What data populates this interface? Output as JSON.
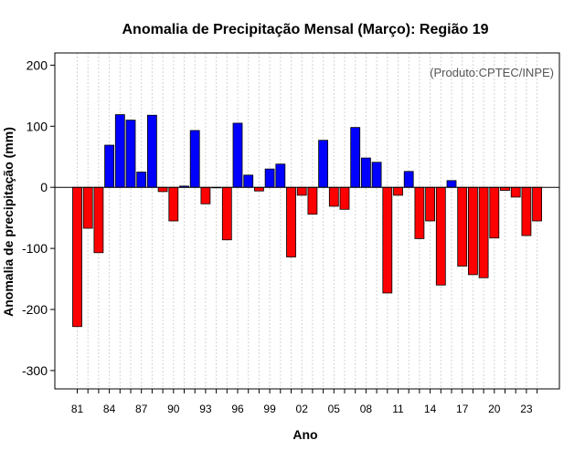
{
  "chart_data": {
    "type": "bar",
    "title": "Anomalia de Precipitação Mensal (Março): Região 19",
    "xlabel": "Ano",
    "ylabel": "Anomalia de precipitação (mm)",
    "credit": "(Produto:CPTEC/INPE)",
    "ylim": [
      -330,
      220
    ],
    "yticks": [
      -300,
      -200,
      -100,
      0,
      100,
      200
    ],
    "xtick_labels": [
      "81",
      "84",
      "87",
      "90",
      "93",
      "96",
      "99",
      "02",
      "05",
      "08",
      "11",
      "14",
      "17",
      "20",
      "23"
    ],
    "xtick_every": 3,
    "grid": true,
    "zero_line": true,
    "colors": {
      "positive": "#0000ff",
      "negative": "#ff0000",
      "grid": "#d3d3d3",
      "axis": "#000000"
    },
    "categories": [
      "1981",
      "1982",
      "1983",
      "1984",
      "1985",
      "1986",
      "1987",
      "1988",
      "1989",
      "1990",
      "1991",
      "1992",
      "1993",
      "1994",
      "1995",
      "1996",
      "1997",
      "1998",
      "1999",
      "2000",
      "2001",
      "2002",
      "2003",
      "2004",
      "2005",
      "2006",
      "2007",
      "2008",
      "2009",
      "2010",
      "2011",
      "2012",
      "2013",
      "2014",
      "2015",
      "2016",
      "2017",
      "2018",
      "2019",
      "2020",
      "2021",
      "2022",
      "2023",
      "2024"
    ],
    "values": [
      -228,
      -67,
      -107,
      69,
      119,
      110,
      25,
      118,
      -7,
      -55,
      2,
      93,
      -27,
      0,
      -86,
      105,
      20,
      -6,
      30,
      38,
      -114,
      -13,
      -44,
      77,
      -31,
      -36,
      98,
      48,
      41,
      -173,
      -13,
      26,
      -84,
      -55,
      -160,
      11,
      -129,
      -143,
      -148,
      -83,
      -5,
      -16,
      -79,
      -55
    ]
  }
}
